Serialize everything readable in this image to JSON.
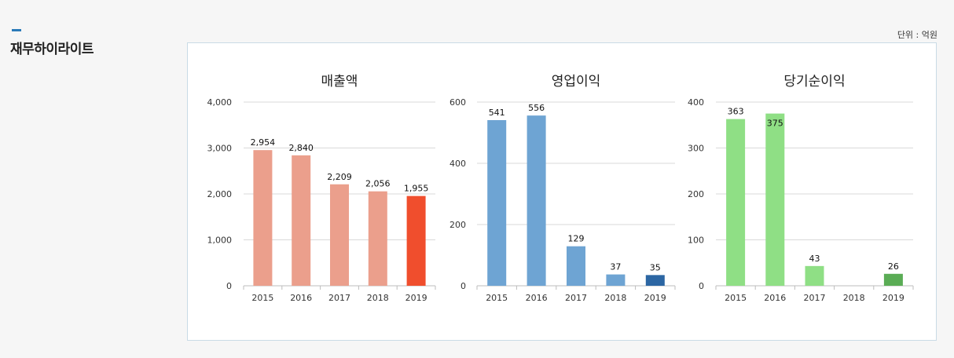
{
  "header": {
    "section_title": "재무하이라이트",
    "unit_label": "단위 : 억원"
  },
  "colors": {
    "accent": "#2a7ab8",
    "panel_border": "#c9dbe6"
  },
  "chart_data": [
    {
      "type": "bar",
      "title": "매출액",
      "categories": [
        "2015",
        "2016",
        "2017",
        "2018",
        "2019"
      ],
      "values": [
        2954,
        2840,
        2209,
        2056,
        1955
      ],
      "labels": [
        "2,954",
        "2,840",
        "2,209",
        "2,056",
        "1,955"
      ],
      "ylim": [
        0,
        4000
      ],
      "yticks": [
        0,
        1000,
        2000,
        3000,
        4000
      ],
      "ytick_labels": [
        "0",
        "1,000",
        "2,000",
        "3,000",
        "4,000"
      ],
      "bar_colors": [
        "#eb9f8c",
        "#eb9f8c",
        "#eb9f8c",
        "#eb9f8c",
        "#f04e2d"
      ],
      "grid": true
    },
    {
      "type": "bar",
      "title": "영업이익",
      "categories": [
        "2015",
        "2016",
        "2017",
        "2018",
        "2019"
      ],
      "values": [
        541,
        556,
        129,
        37,
        35
      ],
      "labels": [
        "541",
        "556",
        "129",
        "37",
        "35"
      ],
      "ylim": [
        0,
        600
      ],
      "yticks": [
        0,
        200,
        400,
        600
      ],
      "ytick_labels": [
        "0",
        "200",
        "400",
        "600"
      ],
      "bar_colors": [
        "#6ea4d3",
        "#6ea4d3",
        "#6ea4d3",
        "#6ea4d3",
        "#2c66a3"
      ],
      "grid": true
    },
    {
      "type": "bar",
      "title": "당기순이익",
      "categories": [
        "2015",
        "2016",
        "2017",
        "2018",
        "2019"
      ],
      "values": [
        363,
        375,
        43,
        0,
        26
      ],
      "labels": [
        "363",
        "375",
        "43",
        "",
        "26"
      ],
      "ylim": [
        0,
        400
      ],
      "yticks": [
        0,
        100,
        200,
        300,
        400
      ],
      "ytick_labels": [
        "0",
        "100",
        "200",
        "300",
        "400"
      ],
      "bar_colors": [
        "#8fdf85",
        "#8fdf85",
        "#8fdf85",
        "#8fdf85",
        "#5aac55"
      ],
      "grid": true
    }
  ]
}
